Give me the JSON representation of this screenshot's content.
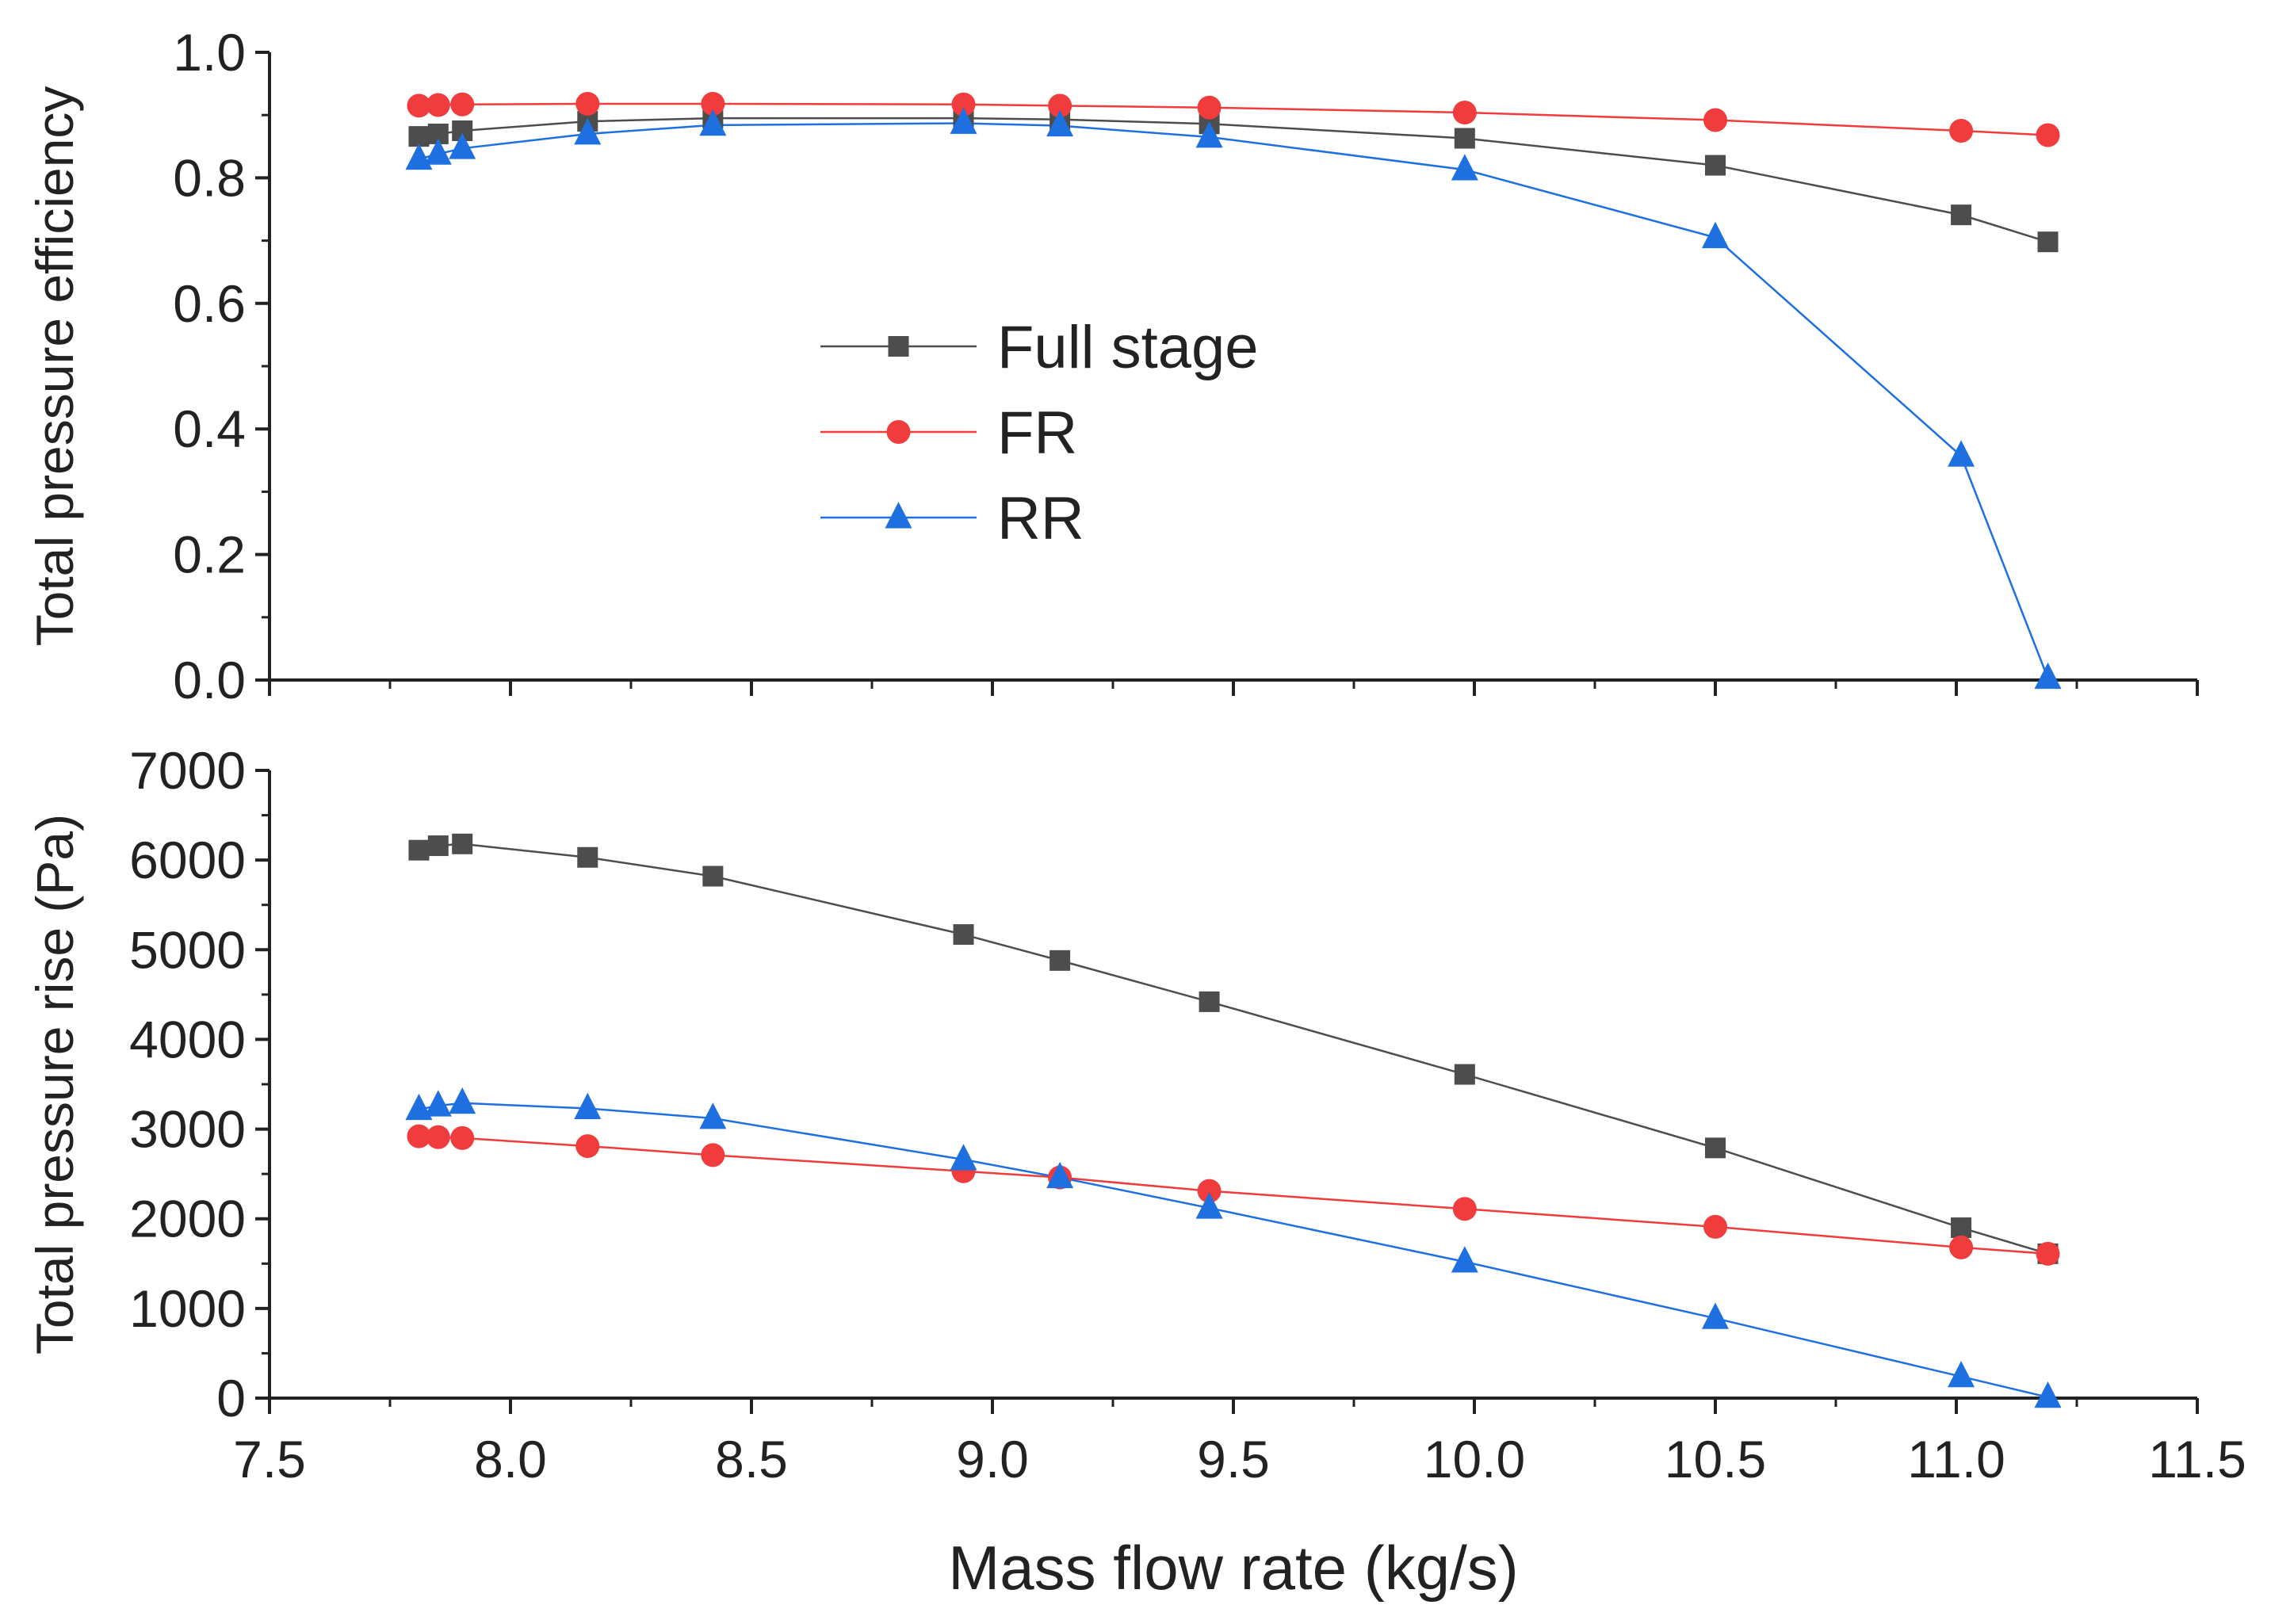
{
  "chart_data": {
    "type": "line",
    "shared_x_axis": {
      "label": "Mass flow rate (kg/s)",
      "xlim": [
        7.5,
        11.5
      ],
      "ticks": [
        "7.5",
        "8.0",
        "8.5",
        "9.0",
        "9.5",
        "10.0",
        "10.5",
        "11.0",
        "11.5"
      ]
    },
    "legend": {
      "placement": "center-left of top panel",
      "entries": [
        "Full stage",
        "FR",
        "RR"
      ]
    },
    "colors": {
      "Full stage": "#4d4d4d",
      "FR": "#f03c3c",
      "RR": "#1e6fe0"
    },
    "panels": [
      {
        "ylabel": "Total pressure efficiency",
        "ylim": [
          0.0,
          1.0
        ],
        "yticks": [
          "0.0",
          "0.2",
          "0.4",
          "0.6",
          "0.8",
          "1.0"
        ],
        "series": [
          {
            "name": "Full stage",
            "marker": "square",
            "x": [
              7.81,
              7.85,
              7.9,
              8.16,
              8.42,
              8.94,
              9.14,
              9.45,
              9.98,
              10.5,
              11.01,
              11.19
            ],
            "y": [
              0.866,
              0.87,
              0.875,
              0.89,
              0.895,
              0.895,
              0.893,
              0.886,
              0.863,
              0.82,
              0.741,
              0.698
            ]
          },
          {
            "name": "FR",
            "marker": "circle",
            "x": [
              7.81,
              7.85,
              7.9,
              8.16,
              8.42,
              8.94,
              9.14,
              9.45,
              9.98,
              10.5,
              11.01,
              11.19
            ],
            "y": [
              0.915,
              0.916,
              0.917,
              0.918,
              0.918,
              0.917,
              0.915,
              0.912,
              0.904,
              0.892,
              0.875,
              0.868
            ]
          },
          {
            "name": "RR",
            "marker": "triangle",
            "x": [
              7.81,
              7.85,
              7.9,
              8.16,
              8.42,
              8.94,
              9.14,
              9.45,
              9.98,
              10.5,
              11.01,
              11.19
            ],
            "y": [
              0.83,
              0.838,
              0.847,
              0.87,
              0.884,
              0.887,
              0.883,
              0.865,
              0.813,
              0.705,
              0.357,
              0.003
            ]
          }
        ]
      },
      {
        "ylabel": "Total pressure rise (Pa)",
        "ylim": [
          0,
          7000
        ],
        "yticks": [
          "0",
          "1000",
          "2000",
          "3000",
          "4000",
          "5000",
          "6000",
          "7000"
        ],
        "series": [
          {
            "name": "Full stage",
            "marker": "square",
            "x": [
              7.81,
              7.85,
              7.9,
              8.16,
              8.42,
              8.94,
              9.14,
              9.45,
              9.98,
              10.5,
              11.01,
              11.19
            ],
            "y": [
              6110,
              6160,
              6180,
              6030,
              5820,
              5170,
              4880,
              4420,
              3610,
              2790,
              1900,
              1610
            ]
          },
          {
            "name": "FR",
            "marker": "circle",
            "x": [
              7.81,
              7.85,
              7.9,
              8.16,
              8.42,
              8.94,
              9.14,
              9.45,
              9.98,
              10.5,
              11.01,
              11.19
            ],
            "y": [
              2920,
              2910,
              2900,
              2810,
              2710,
              2530,
              2460,
              2310,
              2110,
              1910,
              1680,
              1610
            ]
          },
          {
            "name": "RR",
            "marker": "triangle",
            "x": [
              7.81,
              7.85,
              7.9,
              8.16,
              8.42,
              8.94,
              9.14,
              9.45,
              9.98,
              10.5,
              11.01,
              11.19
            ],
            "y": [
              3220,
              3260,
              3290,
              3230,
              3120,
              2660,
              2460,
              2120,
              1520,
              890,
              240,
              10
            ]
          }
        ]
      }
    ]
  }
}
